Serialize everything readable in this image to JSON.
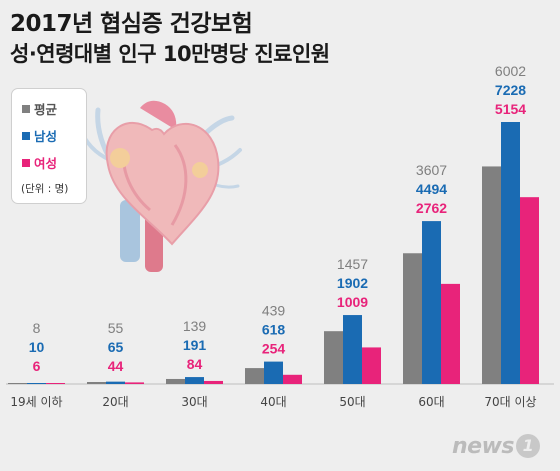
{
  "title_line1": "2017년 협심증 건강보험",
  "title_line2": "성·연령대별 인구 10만명당 진료인원",
  "legend": {
    "items": [
      {
        "label": "평균",
        "color": "#808080"
      },
      {
        "label": "남성",
        "color": "#1a6bb3"
      },
      {
        "label": "여성",
        "color": "#e8237a"
      }
    ],
    "unit": "(단위 : 명)"
  },
  "logo": {
    "text": "news",
    "badge": "1"
  },
  "chart_data": {
    "type": "bar",
    "categories": [
      "19세 이하",
      "20대",
      "30대",
      "40대",
      "50대",
      "60대",
      "70대 이상"
    ],
    "series": [
      {
        "name": "평균",
        "color": "#808080",
        "values": [
          8,
          55,
          139,
          439,
          1457,
          3607,
          6002
        ]
      },
      {
        "name": "남성",
        "color": "#1a6bb3",
        "values": [
          10,
          65,
          191,
          618,
          1902,
          4494,
          7228
        ]
      },
      {
        "name": "여성",
        "color": "#e8237a",
        "values": [
          6,
          44,
          84,
          254,
          1009,
          2762,
          5154
        ]
      }
    ],
    "ylim": [
      0,
      7228
    ],
    "grid": false
  }
}
